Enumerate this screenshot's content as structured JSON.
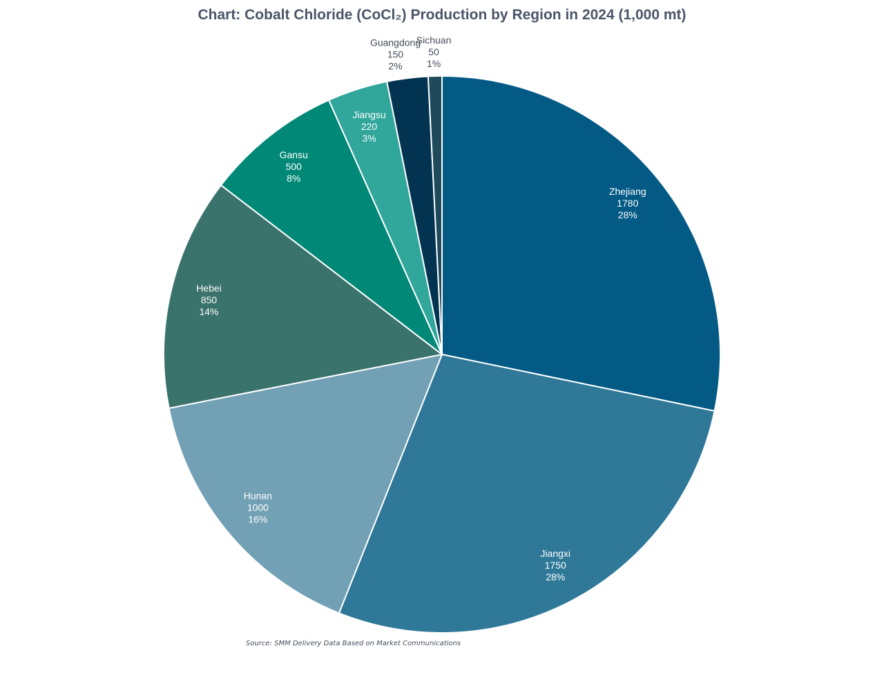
{
  "chart_data": {
    "type": "pie",
    "title": "Chart: Cobalt Chloride (CoCl₂) Production by Region in 2024 (1,000 mt)",
    "source": "Source: SMM Delivery Data Based on Market Communications",
    "start_angle_deg": 0,
    "direction": "clockwise",
    "slices": [
      {
        "label": "Zhejiang",
        "value": 1780,
        "percent": "28%",
        "color": "#035a85",
        "text_color": "#ffffff",
        "label_pos": "inside"
      },
      {
        "label": "Jiangxi",
        "value": 1750,
        "percent": "28%",
        "color": "#2f7898",
        "text_color": "#ffffff",
        "label_pos": "inside"
      },
      {
        "label": "Hunan",
        "value": 1000,
        "percent": "16%",
        "color": "#72a0b4",
        "text_color": "#ffffff",
        "label_pos": "inside"
      },
      {
        "label": "Hebei",
        "value": 850,
        "percent": "14%",
        "color": "#3a736b",
        "text_color": "#ffffff",
        "label_pos": "inside"
      },
      {
        "label": "Gansu",
        "value": 500,
        "percent": "8%",
        "color": "#018877",
        "text_color": "#ffffff",
        "label_pos": "inside"
      },
      {
        "label": "Jiangsu",
        "value": 220,
        "percent": "3%",
        "color": "#31a69b",
        "text_color": "#ffffff",
        "label_pos": "inside"
      },
      {
        "label": "Guangdong",
        "value": 150,
        "percent": "2%",
        "color": "#023452",
        "text_color": "#444c5a",
        "label_pos": "outside"
      },
      {
        "label": "Sichuan",
        "value": 50,
        "percent": "1%",
        "color": "#1e4a5c",
        "text_color": "#444c5a",
        "label_pos": "outside"
      }
    ]
  }
}
